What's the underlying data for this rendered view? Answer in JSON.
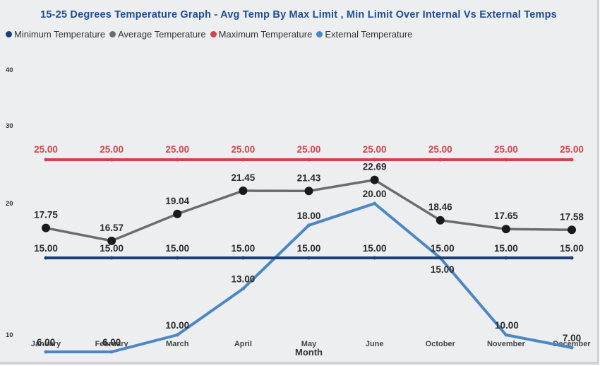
{
  "chart_data": {
    "type": "line",
    "title": "15-25 Degrees Temperature Graph - Avg Temp By Max Limit , Min Limit Over Internal Vs External Temps",
    "xlabel": "Month",
    "ylabel": "",
    "categories": [
      "January",
      "February",
      "March",
      "April",
      "May",
      "June",
      "October",
      "November",
      "December"
    ],
    "yticks": [
      10,
      20,
      30,
      40
    ],
    "ylim": [
      10,
      40
    ],
    "grid": false,
    "legend_position": "top-left",
    "series": [
      {
        "name": "Minimum Temperature",
        "color": "#1b3f78",
        "values": [
          15,
          15,
          15,
          15,
          15,
          15,
          15,
          15,
          15
        ],
        "labels": [
          "15.00",
          "15.00",
          "15.00",
          "15.00",
          "15.00",
          "15.00",
          "15.00",
          "15.00",
          "15.00"
        ],
        "label_color": "#2b2b2b",
        "label_side": "above"
      },
      {
        "name": "Average Temperature",
        "color": "#6b6b6b",
        "values": [
          17.75,
          16.57,
          19.04,
          21.45,
          21.43,
          22.69,
          18.46,
          17.65,
          17.58
        ],
        "labels": [
          "17.75",
          "16.57",
          "19.04",
          "21.45",
          "21.43",
          "22.69",
          "18.46",
          "17.65",
          "17.58"
        ],
        "label_color": "#2b2b2b",
        "label_side": "above"
      },
      {
        "name": "Maximum Temperature",
        "color": "#d4434b",
        "values": [
          25,
          25,
          25,
          25,
          25,
          25,
          25,
          25,
          25
        ],
        "labels": [
          "25.00",
          "25.00",
          "25.00",
          "25.00",
          "25.00",
          "25.00",
          "25.00",
          "25.00",
          "25.00"
        ],
        "label_color": "#d4434b",
        "label_side": "above"
      },
      {
        "name": "External Temperature",
        "color": "#4b86c5",
        "values": [
          6,
          6,
          10,
          13,
          18,
          20,
          15,
          10,
          7
        ],
        "labels": [
          "6.00",
          "6.00",
          "10.00",
          "13.00",
          "18.00",
          "20.00",
          "15.00",
          "10.00",
          "7.00"
        ],
        "label_color": "#2b2b2b",
        "label_side": "above"
      }
    ]
  }
}
